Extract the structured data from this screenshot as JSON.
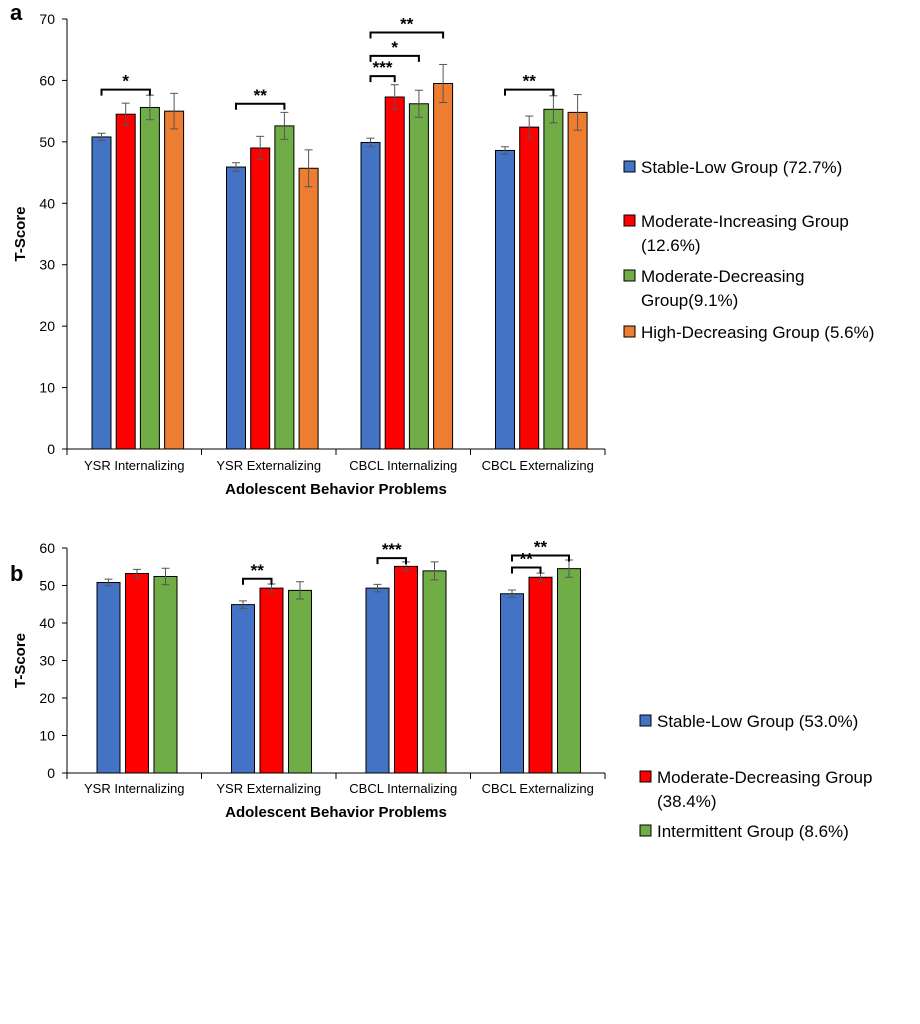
{
  "chart_data": [
    {
      "type": "bar",
      "panel_label": "a",
      "xlabel": "Adolescent Behavior Problems",
      "ylabel": "T-Score",
      "ylim": [
        0,
        70
      ],
      "yticks": [
        0,
        10,
        20,
        30,
        40,
        50,
        60,
        70
      ],
      "grid": false,
      "legend_position": "right",
      "categories": [
        "YSR Internalizing",
        "YSR Externalizing",
        "CBCL Internalizing",
        "CBCL Externalizing"
      ],
      "series": [
        {
          "name": "Stable-Low Group (72.7%)",
          "legend_lines": [
            "Stable-Low Group (72.7%)"
          ],
          "color": "#4472C4",
          "values": [
            50.8,
            45.9,
            49.9,
            48.6
          ],
          "errors": [
            0.6,
            0.7,
            0.7,
            0.6
          ]
        },
        {
          "name": "Moderate-Increasing Group (12.6%)",
          "legend_lines": [
            "Moderate-Increasing Group",
            "(12.6%)"
          ],
          "color": "#FF0000",
          "values": [
            54.5,
            49.0,
            57.3,
            52.4
          ],
          "errors": [
            1.8,
            1.9,
            2.0,
            1.8
          ]
        },
        {
          "name": "Moderate-Decreasing Group(9.1%)",
          "legend_lines": [
            "Moderate-Decreasing",
            "Group(9.1%)"
          ],
          "color": "#70AD47",
          "values": [
            55.6,
            52.6,
            56.2,
            55.3
          ],
          "errors": [
            2.0,
            2.2,
            2.2,
            2.2
          ]
        },
        {
          "name": "High-Decreasing Group (5.6%)",
          "legend_lines": [
            "High-Decreasing Group (5.6%)"
          ],
          "color": "#ED7D31",
          "values": [
            55.0,
            45.7,
            59.5,
            54.8
          ],
          "errors": [
            2.9,
            3.0,
            3.1,
            2.9
          ]
        }
      ],
      "significance": [
        {
          "category": 0,
          "from": 0,
          "to": 2,
          "y": 58.5,
          "label": "*"
        },
        {
          "category": 1,
          "from": 0,
          "to": 2,
          "y": 56.2,
          "label": "**"
        },
        {
          "category": 2,
          "from": 0,
          "to": 1,
          "y": 60.7,
          "label": "***"
        },
        {
          "category": 2,
          "from": 0,
          "to": 2,
          "y": 64.0,
          "label": "*"
        },
        {
          "category": 2,
          "from": 0,
          "to": 3,
          "y": 67.8,
          "label": "**"
        },
        {
          "category": 3,
          "from": 0,
          "to": 2,
          "y": 58.5,
          "label": "**"
        }
      ]
    },
    {
      "type": "bar",
      "panel_label": "b",
      "xlabel": "Adolescent Behavior Problems",
      "ylabel": "T-Score",
      "ylim": [
        0,
        60
      ],
      "yticks": [
        0,
        10,
        20,
        30,
        40,
        50,
        60
      ],
      "grid": false,
      "legend_position": "right",
      "categories": [
        "YSR Internalizing",
        "YSR Externalizing",
        "CBCL Internalizing",
        "CBCL Externalizing"
      ],
      "series": [
        {
          "name": "Stable-Low Group (53.0%)",
          "legend_lines": [
            "Stable-Low Group (53.0%)"
          ],
          "color": "#4472C4",
          "values": [
            50.8,
            44.9,
            49.3,
            47.8
          ],
          "errors": [
            0.9,
            1.0,
            1.0,
            1.0
          ]
        },
        {
          "name": "Moderate-Decreasing Group (38.4%)",
          "legend_lines": [
            "Moderate-Decreasing Group",
            "(38.4%)"
          ],
          "color": "#FF0000",
          "values": [
            53.2,
            49.3,
            55.1,
            52.2
          ],
          "errors": [
            1.1,
            1.1,
            1.2,
            1.1
          ]
        },
        {
          "name": "Intermittent Group (8.6%)",
          "legend_lines": [
            "Intermittent Group (8.6%)"
          ],
          "color": "#70AD47",
          "values": [
            52.4,
            48.7,
            53.9,
            54.5
          ],
          "errors": [
            2.2,
            2.3,
            2.4,
            2.3
          ]
        }
      ],
      "significance": [
        {
          "category": 1,
          "from": 0,
          "to": 1,
          "y": 51.8,
          "label": "**"
        },
        {
          "category": 2,
          "from": 0,
          "to": 1,
          "y": 57.3,
          "label": "***"
        },
        {
          "category": 3,
          "from": 0,
          "to": 1,
          "y": 54.8,
          "label": "**"
        },
        {
          "category": 3,
          "from": 0,
          "to": 2,
          "y": 58.0,
          "label": "**"
        }
      ]
    }
  ]
}
